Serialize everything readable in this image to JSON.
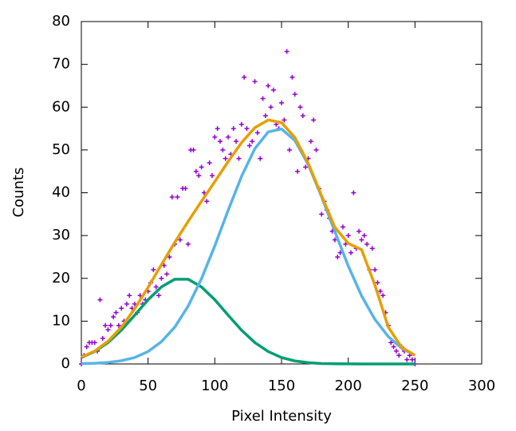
{
  "chart_data": {
    "type": "scatter",
    "x_label": "Pixel Intensity",
    "y_label": "Counts",
    "xlim": [
      0,
      300
    ],
    "xticks": [
      0,
      50,
      100,
      150,
      200,
      250,
      300
    ],
    "ylim": [
      0,
      80
    ],
    "yticks": [
      0,
      10,
      20,
      30,
      40,
      50,
      60,
      70,
      80
    ],
    "series": [
      {
        "type": "scatter",
        "color": "#9400d3",
        "x": [
          0,
          2,
          4,
          6,
          8,
          10,
          12,
          14,
          16,
          18,
          20,
          22,
          24,
          26,
          28,
          30,
          32,
          34,
          36,
          38,
          40,
          42,
          44,
          46,
          48,
          50,
          52,
          54,
          56,
          58,
          60,
          62,
          64,
          66,
          68,
          70,
          72,
          74,
          76,
          78,
          80,
          82,
          84,
          86,
          88,
          90,
          92,
          94,
          96,
          98,
          100,
          102,
          104,
          106,
          108,
          110,
          112,
          114,
          116,
          118,
          120,
          122,
          124,
          126,
          128,
          130,
          132,
          134,
          136,
          138,
          140,
          142,
          144,
          146,
          148,
          150,
          152,
          154,
          156,
          158,
          160,
          162,
          164,
          166,
          168,
          170,
          172,
          174,
          176,
          178,
          180,
          182,
          184,
          186,
          188,
          190,
          192,
          194,
          196,
          198,
          200,
          202,
          204,
          206,
          208,
          210,
          212,
          214,
          216,
          218,
          220,
          222,
          224,
          226,
          228,
          230,
          232,
          234,
          236,
          238,
          240,
          242,
          244,
          246,
          248,
          250
        ],
        "values": [
          0,
          2,
          4,
          5,
          5,
          5,
          3,
          15,
          6,
          9,
          8,
          9,
          11,
          12,
          9,
          13,
          10,
          14,
          16,
          13,
          14,
          12,
          16,
          14,
          15,
          17,
          19,
          22,
          18,
          16,
          20,
          23,
          21,
          25,
          39,
          28,
          39,
          29,
          41,
          41,
          28,
          50,
          50,
          45,
          44,
          46,
          40,
          38,
          47,
          44,
          53,
          55,
          52,
          50,
          48,
          53,
          49,
          55,
          52,
          48,
          56,
          67,
          55,
          51,
          52,
          66,
          54,
          48,
          62,
          58,
          65,
          60,
          64,
          56,
          55,
          61,
          57,
          73,
          50,
          67,
          63,
          45,
          60,
          58,
          46,
          48,
          52,
          57,
          50,
          41,
          35,
          38,
          36,
          34,
          31,
          29,
          25,
          26,
          32,
          28,
          30,
          26,
          40,
          27,
          31,
          29,
          30,
          28,
          22,
          27,
          22,
          19,
          17,
          16,
          12,
          9,
          5,
          4,
          3,
          2,
          4,
          3,
          1,
          2,
          1,
          0
        ]
      },
      {
        "type": "line",
        "color": "#009e73",
        "x": [
          0,
          10,
          20,
          30,
          40,
          50,
          60,
          70,
          80,
          90,
          100,
          110,
          120,
          130,
          140,
          150,
          160,
          170,
          180,
          190,
          200,
          210,
          220,
          230,
          240,
          250
        ],
        "values": [
          1.5,
          2.9,
          5.0,
          7.9,
          11.4,
          15.0,
          18.0,
          19.8,
          19.8,
          18.0,
          15.0,
          11.4,
          7.9,
          5.0,
          2.9,
          1.5,
          0.7,
          0.3,
          0.1,
          0.05,
          0.02,
          0,
          0,
          0,
          0,
          0
        ]
      },
      {
        "type": "line",
        "color": "#56b4e9",
        "x": [
          0,
          10,
          20,
          30,
          40,
          50,
          60,
          70,
          80,
          90,
          100,
          110,
          120,
          130,
          140,
          150,
          160,
          170,
          180,
          190,
          200,
          210,
          220,
          230,
          240,
          250
        ],
        "values": [
          0.06,
          0.16,
          0.36,
          0.76,
          1.5,
          2.9,
          5.2,
          8.6,
          13.5,
          19.9,
          27.6,
          35.9,
          43.8,
          50.3,
          54.2,
          54.9,
          52.2,
          46.6,
          39.1,
          30.9,
          22.9,
          15.9,
          10.4,
          6.4,
          3.7,
          2.0
        ]
      },
      {
        "type": "line",
        "color": "#e69f00",
        "x": [
          0,
          10,
          20,
          30,
          40,
          50,
          60,
          70,
          80,
          90,
          100,
          110,
          120,
          130,
          140,
          150,
          160,
          170,
          180,
          190,
          200,
          210,
          220,
          230,
          240,
          250
        ],
        "values": [
          1.6,
          3.0,
          5.3,
          8.6,
          12.9,
          17.9,
          23.2,
          28.4,
          33.3,
          38.0,
          42.6,
          47.3,
          51.7,
          55.2,
          57.0,
          56.4,
          52.9,
          46.9,
          39.3,
          31.9,
          28.2,
          26.7,
          18.4,
          8.6,
          3.9,
          2.0
        ]
      }
    ]
  }
}
